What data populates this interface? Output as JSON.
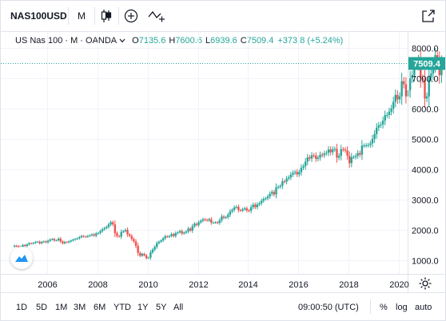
{
  "toolbar": {
    "symbol": "NAS100USD",
    "interval": "M",
    "chart_style_icon": "candles-icon",
    "add_icon": "plus-circle-icon",
    "indicator_icon": "indicators-icon",
    "fullscreen_icon": "expand-icon"
  },
  "legend": {
    "title": "US Nas 100 · M · OANDA",
    "chevron": "chevron-down-icon",
    "o_label": "O",
    "o_value": "7135.6",
    "h_label": "H",
    "h_value": "7600.6",
    "l_label": "L",
    "l_value": "6939.6",
    "c_label": "C",
    "c_value": "7509.4",
    "change": "+373.8 (+5.24%)"
  },
  "price_tag": "7509.4",
  "logo_icon": "tradingview-logo-icon",
  "settings_icon": "gear-icon",
  "colors": {
    "up": "#26a69a",
    "down": "#ef5350",
    "grid": "#f0f3fa",
    "priceLine": "#26a69a"
  },
  "bottom": {
    "ranges": [
      "1D",
      "5D",
      "1M",
      "3M",
      "6M",
      "YTD",
      "1Y",
      "5Y",
      "All"
    ],
    "time": "09:00:50 (UTC)",
    "percent": "%",
    "log": "log",
    "auto": "auto"
  },
  "chart_data": {
    "type": "candlestick",
    "x_label_ticks": [
      "2006",
      "2008",
      "2010",
      "2012",
      "2014",
      "2016",
      "2018",
      "2020"
    ],
    "y_ticks": [
      "1000.0",
      "2000.0",
      "3000.0",
      "4000.0",
      "5000.0",
      "6000.0",
      "7000.0",
      "8000.0"
    ],
    "ylim": [
      550,
      8550
    ],
    "start_year": 2004.7,
    "period": "monthly",
    "closes": [
      1480,
      1460,
      1420,
      1450,
      1500,
      1470,
      1520,
      1560,
      1550,
      1570,
      1600,
      1610,
      1560,
      1600,
      1620,
      1590,
      1640,
      1680,
      1700,
      1650,
      1660,
      1710,
      1620,
      1560,
      1600,
      1590,
      1620,
      1650,
      1680,
      1700,
      1720,
      1760,
      1800,
      1780,
      1770,
      1800,
      1820,
      1850,
      1810,
      1880,
      1900,
      1960,
      2020,
      2060,
      2100,
      2180,
      2250,
      2180,
      1890,
      1800,
      1780,
      1930,
      1960,
      2000,
      1850,
      1800,
      1700,
      1620,
      1470,
      1240,
      1150,
      1210,
      1160,
      1070,
      1090,
      1260,
      1350,
      1440,
      1560,
      1610,
      1650,
      1720,
      1790,
      1770,
      1800,
      1860,
      1800,
      1890,
      1920,
      1960,
      1880,
      1910,
      1950,
      2040,
      1980,
      2120,
      2200,
      2160,
      2250,
      2300,
      2350,
      2330,
      2310,
      2350,
      2240,
      2240,
      2250,
      2230,
      2320,
      2440,
      2400,
      2420,
      2500,
      2610,
      2660,
      2740,
      2760,
      2650,
      2640,
      2680,
      2710,
      2640,
      2630,
      2750,
      2830,
      2750,
      2840,
      2880,
      2960,
      3020,
      3040,
      3100,
      3190,
      3250,
      3170,
      3400,
      3420,
      3450,
      3600,
      3590,
      3690,
      3730,
      3820,
      3880,
      3910,
      3830,
      3900,
      4050,
      4100,
      4250,
      4390,
      4350,
      4460,
      4450,
      4340,
      4380,
      4480,
      4460,
      4520,
      4540,
      4650,
      4560,
      4650,
      4670,
      4380,
      4440,
      4660,
      4650,
      4620,
      4440,
      4200,
      4400,
      4400,
      4440,
      4530,
      4480,
      4780,
      4780,
      4790,
      4800,
      4850,
      5000,
      5160,
      5370,
      5450,
      5470,
      5600,
      5780,
      5790,
      5900,
      6000,
      6220,
      6450,
      6300,
      6400,
      6900,
      6800,
      6400,
      6600,
      6990,
      7100,
      7400,
      7430,
      7600,
      7000,
      6950,
      6330,
      6400,
      7030,
      7150,
      7420,
      7760,
      7600,
      7100,
      7500
    ]
  }
}
